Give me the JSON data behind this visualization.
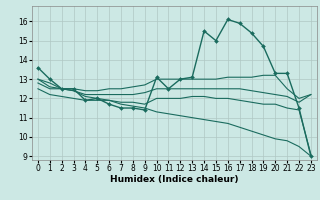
{
  "xlabel": "Humidex (Indice chaleur)",
  "bg_color": "#cce8e4",
  "grid_color": "#b0c8c4",
  "line_color": "#1a6b5e",
  "xlim": [
    -0.5,
    23.5
  ],
  "ylim": [
    8.8,
    16.8
  ],
  "yticks": [
    9,
    10,
    11,
    12,
    13,
    14,
    15,
    16
  ],
  "xticks": [
    0,
    1,
    2,
    3,
    4,
    5,
    6,
    7,
    8,
    9,
    10,
    11,
    12,
    13,
    14,
    15,
    16,
    17,
    18,
    19,
    20,
    21,
    22,
    23
  ],
  "series": [
    {
      "x": [
        0,
        1,
        2,
        3,
        4,
        5,
        6,
        7,
        8,
        9,
        10,
        11,
        12,
        13,
        14,
        15,
        16,
        17,
        18,
        19,
        20,
        21,
        22,
        23
      ],
      "y": [
        13.6,
        13.0,
        12.5,
        12.5,
        11.9,
        12.0,
        11.7,
        11.5,
        11.5,
        11.4,
        13.1,
        12.5,
        13.0,
        13.1,
        15.5,
        15.0,
        16.1,
        15.9,
        15.4,
        14.7,
        13.3,
        13.3,
        11.5,
        9.0
      ],
      "has_markers": true,
      "lw": 1.0
    },
    {
      "x": [
        0,
        1,
        2,
        3,
        4,
        5,
        6,
        7,
        8,
        9,
        10,
        11,
        12,
        13,
        14,
        15,
        16,
        17,
        18,
        19,
        20,
        21,
        22,
        23
      ],
      "y": [
        13.0,
        12.6,
        12.5,
        12.5,
        12.4,
        12.4,
        12.5,
        12.5,
        12.6,
        12.7,
        13.0,
        13.0,
        13.0,
        13.0,
        13.0,
        13.0,
        13.1,
        13.1,
        13.1,
        13.2,
        13.2,
        12.5,
        12.0,
        12.2
      ],
      "has_markers": false,
      "lw": 0.8
    },
    {
      "x": [
        0,
        1,
        2,
        3,
        4,
        5,
        6,
        7,
        8,
        9,
        10,
        11,
        12,
        13,
        14,
        15,
        16,
        17,
        18,
        19,
        20,
        21,
        22,
        23
      ],
      "y": [
        12.8,
        12.5,
        12.5,
        12.4,
        12.2,
        12.2,
        12.2,
        12.2,
        12.2,
        12.3,
        12.5,
        12.5,
        12.5,
        12.5,
        12.5,
        12.5,
        12.5,
        12.5,
        12.4,
        12.3,
        12.2,
        12.1,
        11.8,
        12.2
      ],
      "has_markers": false,
      "lw": 0.8
    },
    {
      "x": [
        0,
        1,
        2,
        3,
        4,
        5,
        6,
        7,
        8,
        9,
        10,
        11,
        12,
        13,
        14,
        15,
        16,
        17,
        18,
        19,
        20,
        21,
        22,
        23
      ],
      "y": [
        12.5,
        12.2,
        12.1,
        12.0,
        11.9,
        11.9,
        11.9,
        11.8,
        11.8,
        11.7,
        12.0,
        12.0,
        12.0,
        12.1,
        12.1,
        12.0,
        12.0,
        11.9,
        11.8,
        11.7,
        11.7,
        11.5,
        11.4,
        9.1
      ],
      "has_markers": false,
      "lw": 0.8
    },
    {
      "x": [
        0,
        1,
        2,
        3,
        4,
        5,
        6,
        7,
        8,
        9,
        10,
        11,
        12,
        13,
        14,
        15,
        16,
        17,
        18,
        19,
        20,
        21,
        22,
        23
      ],
      "y": [
        13.0,
        12.8,
        12.5,
        12.4,
        12.1,
        12.0,
        11.9,
        11.7,
        11.6,
        11.5,
        11.3,
        11.2,
        11.1,
        11.0,
        10.9,
        10.8,
        10.7,
        10.5,
        10.3,
        10.1,
        9.9,
        9.8,
        9.5,
        9.0
      ],
      "has_markers": false,
      "lw": 0.8
    }
  ],
  "tick_fontsize": 5.5,
  "xlabel_fontsize": 6.5
}
